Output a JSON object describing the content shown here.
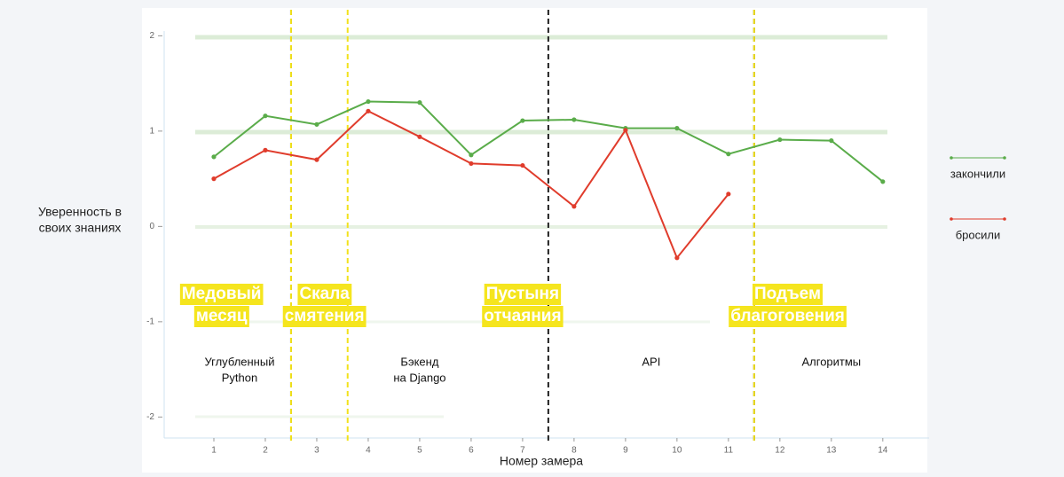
{
  "chart_data": {
    "type": "line",
    "x_label": "Номер замера",
    "y_label": [
      "Уверенность в",
      "своих знаниях"
    ],
    "x": [
      1,
      2,
      3,
      4,
      5,
      6,
      7,
      8,
      9,
      10,
      11,
      12,
      13,
      14
    ],
    "series": [
      {
        "name": "закончили",
        "color": "#5aac4a",
        "values": [
          0.73,
          1.16,
          1.07,
          1.31,
          1.3,
          0.75,
          1.11,
          1.12,
          1.03,
          1.03,
          0.76,
          0.91,
          0.9,
          0.47
        ]
      },
      {
        "name": "бросили",
        "color": "#e03c2c",
        "values": [
          0.5,
          0.8,
          0.7,
          1.21,
          0.94,
          0.66,
          0.64,
          0.21,
          1.01,
          -0.33,
          0.34,
          null,
          null,
          null
        ]
      }
    ],
    "xlim": [
      0,
      14.9
    ],
    "ylim": [
      -2.22,
      2.05
    ],
    "xticks": [
      1,
      2,
      3,
      4,
      5,
      6,
      7,
      8,
      9,
      10,
      11,
      12,
      13,
      14
    ],
    "yticks": [
      2,
      1,
      0,
      -1,
      -2
    ],
    "vertical_lines": [
      {
        "value": 2.5,
        "color": "#222222"
      },
      {
        "value": 7.5,
        "color": "#222222"
      },
      {
        "value": 11.5,
        "color": "#222222"
      },
      {
        "value": 2.5,
        "color": "#f2e21c"
      },
      {
        "value": 3.6,
        "color": "#f2e21c"
      },
      {
        "value": 11.5,
        "color": "#f2e21c"
      }
    ],
    "phases": [
      {
        "lines": [
          "Медовый",
          "месяц"
        ],
        "x": 1.15
      },
      {
        "lines": [
          "Скала",
          "смятения"
        ],
        "x": 3.15
      },
      {
        "lines": [
          "Пустыня",
          "отчаяния"
        ],
        "x": 7.0
      },
      {
        "lines": [
          "Подъем",
          "благоговения"
        ],
        "x": 12.15
      }
    ],
    "courses": [
      {
        "lines": [
          "Углубленный",
          "Python"
        ],
        "x": 1.5
      },
      {
        "lines": [
          "Бэкенд",
          "на Django"
        ],
        "x": 5.0
      },
      {
        "lines": [
          "API"
        ],
        "x": 9.5
      },
      {
        "lines": [
          "Алгоритмы"
        ],
        "x": 13.0
      }
    ]
  }
}
